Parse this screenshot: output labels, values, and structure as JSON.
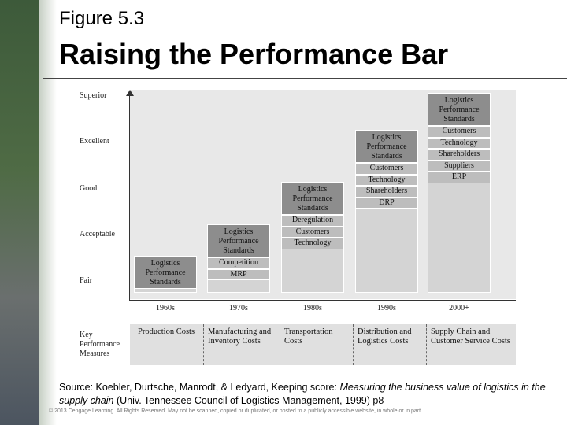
{
  "figure_label": "Figure 5.3",
  "title": "Raising the Performance Bar",
  "y_levels": [
    "Superior",
    "Excellent",
    "Good",
    "Acceptable",
    "Fair"
  ],
  "columns": [
    {
      "label": "1960s",
      "header": "Logistics Performance Standards",
      "items": []
    },
    {
      "label": "1970s",
      "header": "Logistics Performance Standards",
      "items": [
        "Competition",
        "MRP"
      ]
    },
    {
      "label": "1980s",
      "header": "Logistics Performance Standards",
      "items": [
        "Deregulation",
        "Customers",
        "Technology"
      ]
    },
    {
      "label": "1990s",
      "header": "Logistics Performance Standards",
      "items": [
        "Customers",
        "Technology",
        "Shareholders",
        "DRP"
      ]
    },
    {
      "label": "2000+",
      "header": "Logistics Performance Standards",
      "items": [
        "Customers",
        "Technology",
        "Shareholders",
        "Suppliers",
        "ERP"
      ]
    }
  ],
  "measures_label": "Key Performance Measures",
  "measures": [
    "Production Costs",
    "Manufacturing and Inventory Costs",
    "Transportation Costs",
    "Distribution and Logistics Costs",
    "Supply Chain and Customer Service Costs"
  ],
  "source": {
    "prefix": "Source: Koebler, Durtsche, Manrodt, & Ledyard, Keeping score: ",
    "italic": "Measuring the business value of logistics in the supply chain",
    "suffix": " (Univ. Tennessee Council of Logistics Management, 1999) p8"
  },
  "copyright": "© 2013 Cengage Learning. All Rights Reserved. May not be scanned, copied or duplicated, or posted to a publicly accessible website, in whole or in part."
}
